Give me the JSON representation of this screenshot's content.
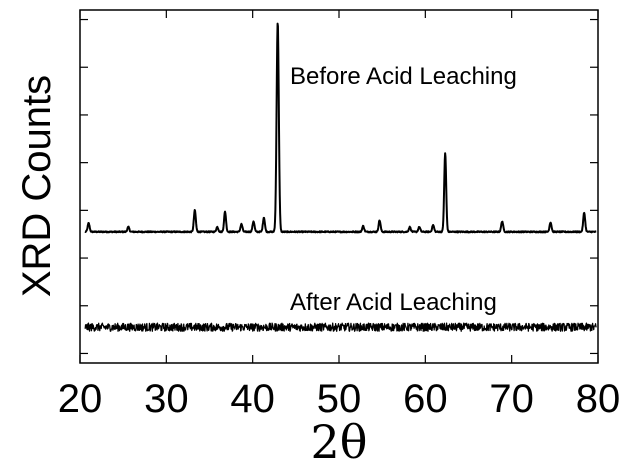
{
  "chart_data": {
    "type": "line",
    "xlabel": "2θ",
    "ylabel": "XRD Counts",
    "xlim": [
      20,
      80
    ],
    "x_ticks": [
      "20",
      "30",
      "40",
      "50",
      "60",
      "70",
      "80"
    ],
    "y_ticks_labeled": false,
    "grid": false,
    "annotations": [
      "Before Acid Leaching",
      "After Acid Leaching"
    ],
    "series": [
      {
        "baseline": 0.55,
        "noise": 0.012,
        "peaks": [
          {
            "x": 21.0,
            "height": 0.18
          },
          {
            "x": 25.6,
            "height": 0.1
          },
          {
            "x": 33.3,
            "height": 0.45
          },
          {
            "x": 35.9,
            "height": 0.1
          },
          {
            "x": 36.8,
            "height": 0.42
          },
          {
            "x": 38.7,
            "height": 0.16
          },
          {
            "x": 40.1,
            "height": 0.22
          },
          {
            "x": 41.3,
            "height": 0.3
          },
          {
            "x": 42.9,
            "height": 4.4
          },
          {
            "x": 52.8,
            "height": 0.12
          },
          {
            "x": 54.7,
            "height": 0.24
          },
          {
            "x": 58.2,
            "height": 0.1
          },
          {
            "x": 59.3,
            "height": 0.1
          },
          {
            "x": 60.9,
            "height": 0.14
          },
          {
            "x": 62.3,
            "height": 1.65
          },
          {
            "x": 68.9,
            "height": 0.22
          },
          {
            "x": 74.5,
            "height": 0.2
          },
          {
            "x": 78.4,
            "height": 0.4
          }
        ]
      },
      {
        "baseline": -1.45,
        "noise": 0.085,
        "peaks": []
      }
    ],
    "ylim": [
      -2.2,
      5.2
    ]
  }
}
